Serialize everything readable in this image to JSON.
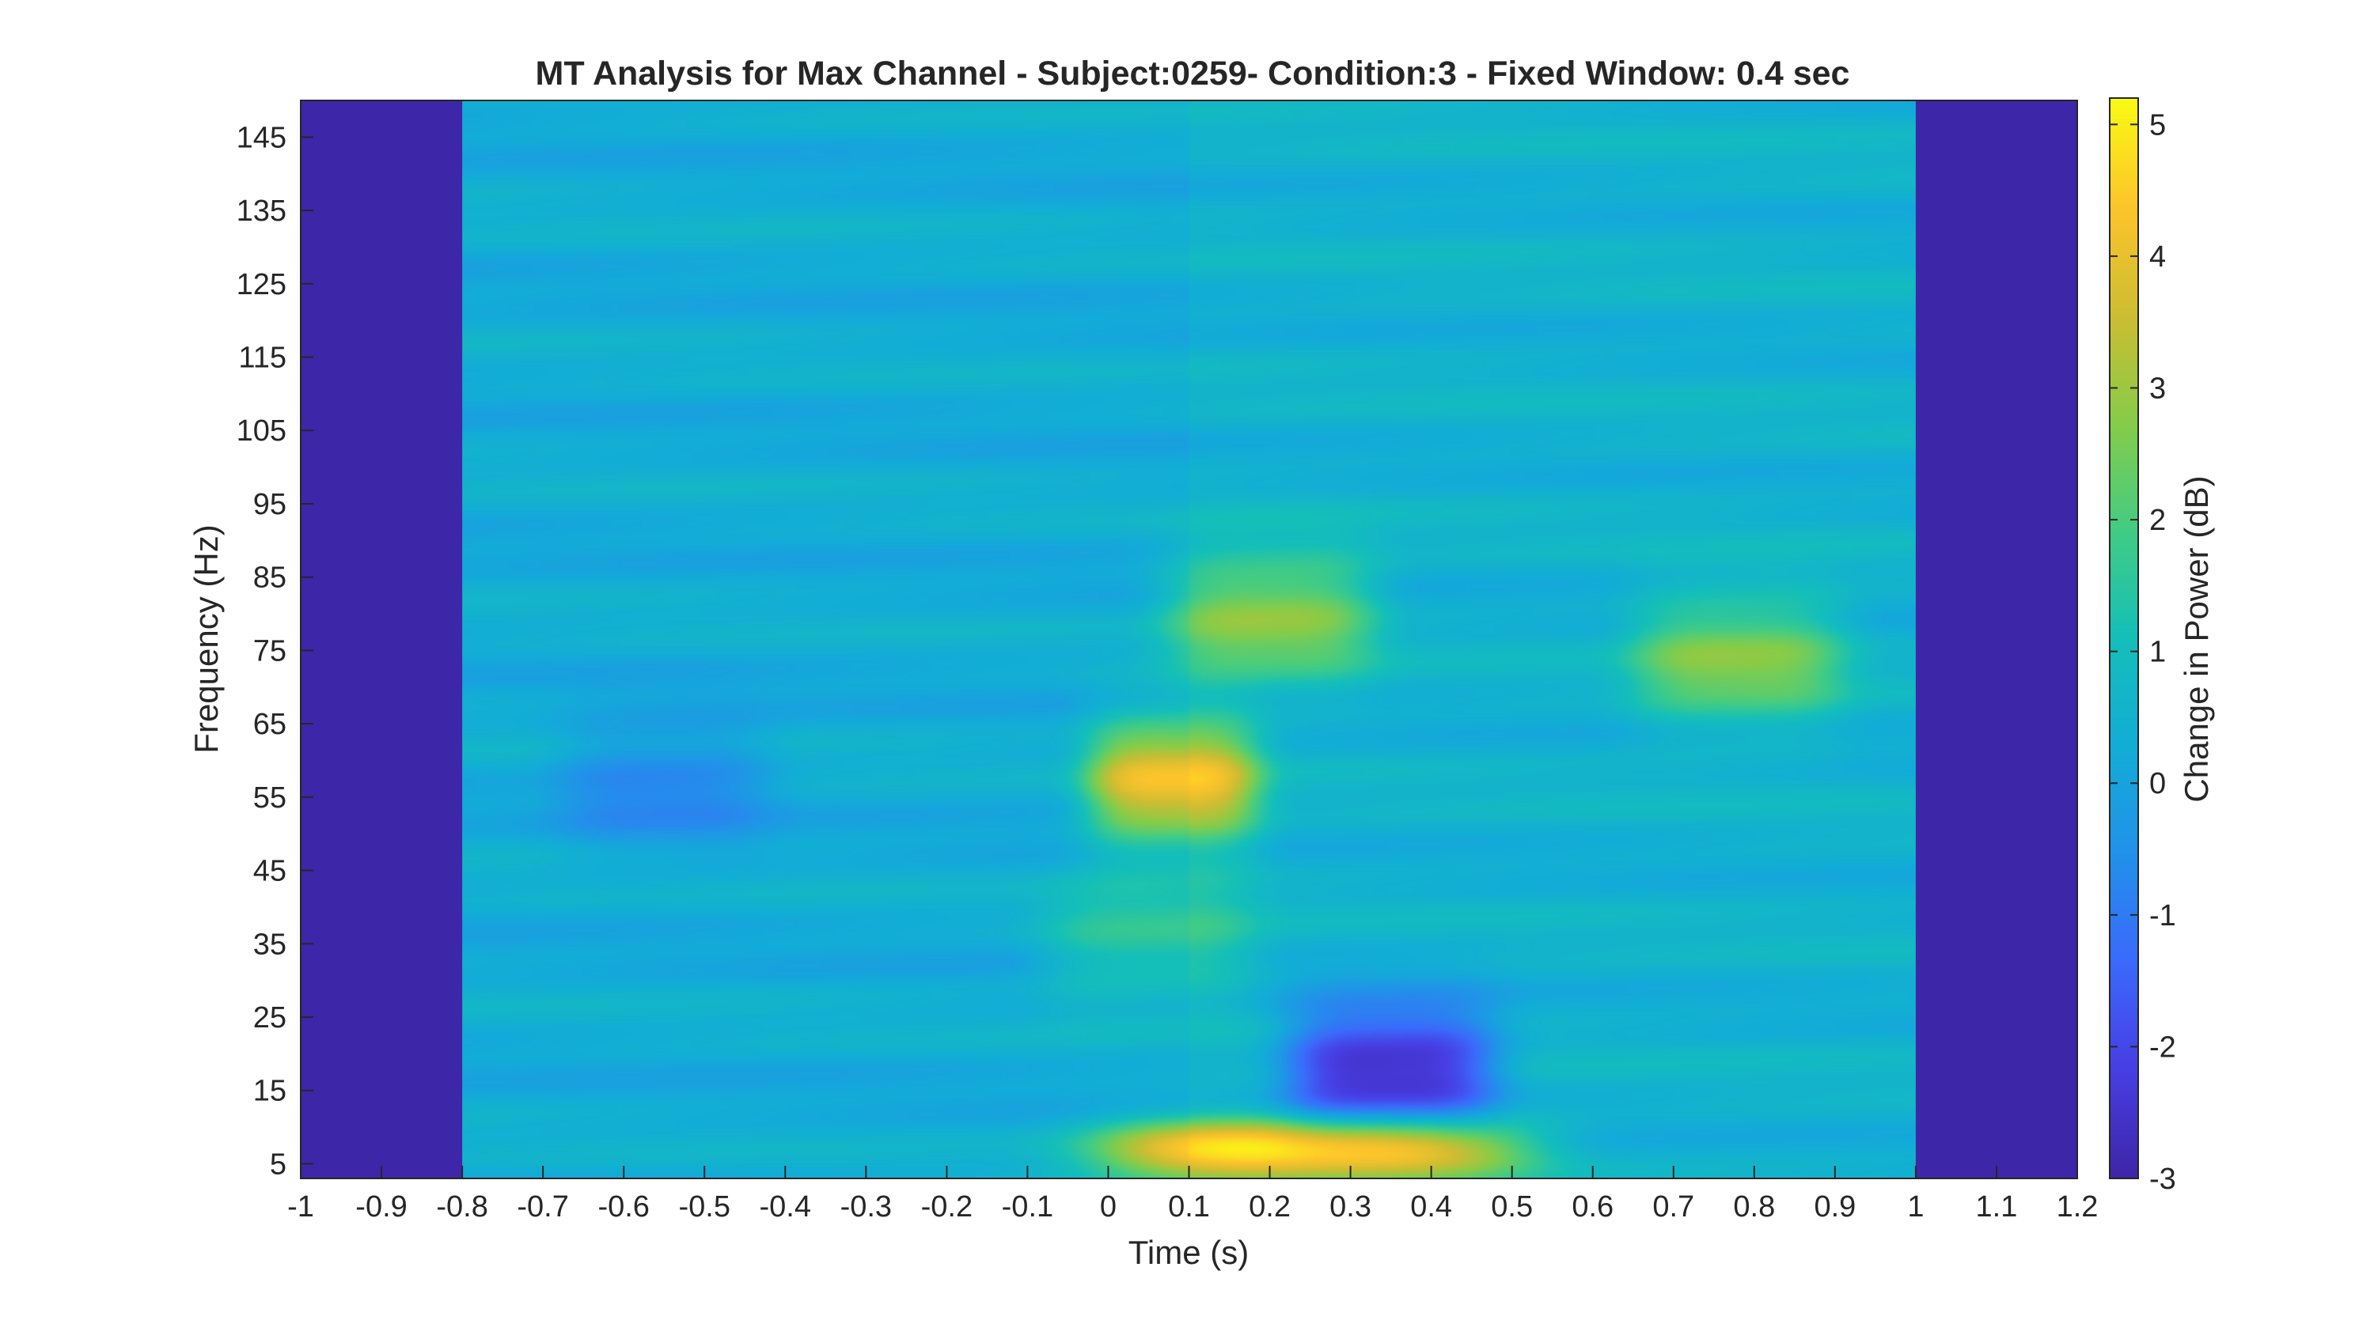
{
  "chart_data": {
    "type": "heatmap",
    "title": "MT Analysis for Max Channel - Subject:0259- Condition:3 - Fixed Window:  0.4 sec",
    "xlabel": "Time (s)",
    "ylabel": "Frequency (Hz)",
    "colorbar_label": "Change in Power (dB)",
    "xlim": [
      -1,
      1.2
    ],
    "ylim": [
      3,
      150
    ],
    "clim": [
      -3,
      5.2
    ],
    "colormap": "parula",
    "x_ticks": [
      "-1",
      "-0.9",
      "-0.8",
      "-0.7",
      "-0.6",
      "-0.5",
      "-0.4",
      "-0.3",
      "-0.2",
      "-0.1",
      "0",
      "0.1",
      "0.2",
      "0.3",
      "0.4",
      "0.5",
      "0.6",
      "0.7",
      "0.8",
      "0.9",
      "1",
      "1.1",
      "1.2"
    ],
    "y_ticks": [
      "5",
      "15",
      "25",
      "35",
      "45",
      "55",
      "65",
      "75",
      "85",
      "95",
      "105",
      "115",
      "125",
      "135",
      "145"
    ],
    "colorbar_ticks": [
      "-3",
      "-2",
      "-1",
      "0",
      "1",
      "2",
      "3",
      "4",
      "5"
    ],
    "data_time_range": [
      -0.8,
      1.0
    ],
    "background_level_db": 0.3,
    "features": [
      {
        "time": 0.08,
        "freq": 57,
        "power_db": 4.0
      },
      {
        "time": 0.2,
        "freq": 80,
        "power_db": 2.6
      },
      {
        "time": 0.78,
        "freq": 74,
        "power_db": 2.4
      },
      {
        "time": 0.35,
        "freq": 18,
        "power_db": -2.9
      },
      {
        "time": 0.25,
        "freq": 7,
        "power_db": 4.9
      },
      {
        "time": 0.05,
        "freq": 35,
        "power_db": 1.5
      },
      {
        "time": -0.55,
        "freq": 57,
        "power_db": -0.7
      }
    ],
    "grid": false
  }
}
